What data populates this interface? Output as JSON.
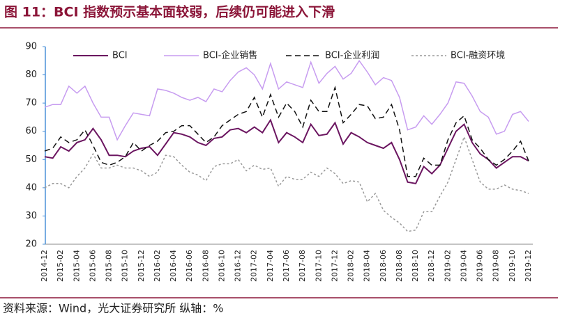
{
  "chart_data": {
    "type": "line",
    "title": "图 11：BCI 指数预示基本面较弱，后续仍可能进入下滑",
    "source": "资料来源：Wind，光大证券研究所 纵轴：%",
    "categories": [
      "2014-12",
      null,
      "2015-02",
      null,
      "2015-04",
      null,
      "2015-06",
      null,
      "2015-08",
      null,
      "2015-10",
      null,
      "2015-12",
      null,
      "2016-02",
      null,
      "2016-04",
      null,
      "2016-06",
      null,
      "2016-08",
      null,
      "2016-10",
      null,
      "2016-12",
      null,
      "2017-02",
      null,
      "2017-04",
      null,
      "2017-06",
      null,
      "2017-08",
      null,
      "2017-10",
      null,
      "2017-12",
      null,
      "2018-02",
      null,
      "2018-04",
      null,
      "2018-06",
      null,
      "2018-08",
      null,
      "2018-10",
      null,
      "2018-12",
      null,
      "2019-02",
      null,
      "2019-04",
      null,
      "2019-06",
      null,
      "2019-08",
      null,
      "2019-10",
      null,
      "2019-12"
    ],
    "series": [
      {
        "name": "BCI",
        "color": "#6b1560",
        "dash": "solid",
        "width": 2,
        "values": [
          51,
          50.5,
          54.5,
          53,
          56,
          57,
          61,
          57,
          51.5,
          51.5,
          51,
          53,
          54,
          54.5,
          51.5,
          55.5,
          59.5,
          59,
          58,
          56,
          55,
          57.5,
          58,
          60.5,
          61,
          59.5,
          61.5,
          59.5,
          64,
          56,
          59.5,
          58,
          56,
          62.5,
          58.5,
          59,
          63,
          55.5,
          59.5,
          58,
          56,
          55,
          54,
          56,
          50,
          42,
          41.5,
          47.5,
          45,
          48,
          54,
          60,
          62.5,
          56,
          52,
          50,
          47,
          49,
          51,
          51,
          49.5
        ]
      },
      {
        "name": "BCI-企业销售",
        "color": "#c79cf0",
        "dash": "solid",
        "width": 1.5,
        "values": [
          68.5,
          69.5,
          69.5,
          76,
          73.5,
          76,
          70,
          65,
          65,
          57,
          62,
          66.5,
          66,
          65.5,
          75,
          74.5,
          73.5,
          72,
          71,
          72,
          70.5,
          75,
          74,
          78,
          81,
          82.5,
          80,
          75,
          84,
          75,
          77.5,
          76.5,
          75.5,
          84.5,
          77,
          80.5,
          83,
          78.5,
          80.5,
          85,
          81,
          76.5,
          79,
          78,
          72,
          60.5,
          61.5,
          65.5,
          62.5,
          66,
          70,
          77.5,
          77,
          72.5,
          67,
          65,
          59,
          60,
          66,
          67,
          63.5
        ]
      },
      {
        "name": "BCI-企业利润",
        "color": "#111111",
        "dash": "8 5",
        "width": 1.5,
        "values": [
          53,
          54,
          58,
          56,
          57,
          60.5,
          55,
          49,
          48,
          49,
          51,
          56,
          53,
          55,
          56.5,
          59.5,
          60,
          62,
          62,
          59,
          56,
          58,
          62,
          64,
          66,
          67,
          72,
          65,
          73,
          65,
          70,
          67,
          61.5,
          71,
          67,
          67,
          75.5,
          63,
          66,
          69.5,
          69,
          64.5,
          65,
          69.5,
          60.5,
          44,
          44,
          50.5,
          48,
          48,
          57,
          63,
          65.5,
          57,
          54,
          50,
          48,
          50,
          53,
          56.5,
          49.5
        ]
      },
      {
        "name": "BCI-融资环境",
        "color": "#999999",
        "dash": "3 3",
        "width": 1.5,
        "values": [
          40,
          41.5,
          41.5,
          40,
          44,
          47,
          52,
          47,
          47,
          48,
          47,
          47,
          46,
          44,
          45.5,
          51.5,
          51,
          48,
          45.5,
          44.5,
          42.5,
          47.5,
          48.5,
          48.5,
          50,
          46,
          48,
          46.5,
          47,
          40.5,
          44,
          43,
          43,
          45.5,
          44,
          47,
          45,
          41.5,
          42.5,
          42,
          35,
          38,
          32,
          29.5,
          27.5,
          24.5,
          25,
          31.5,
          31.5,
          37,
          42,
          50,
          58,
          50,
          42,
          39.5,
          39.5,
          41,
          39.5,
          39,
          38
        ]
      }
    ],
    "ylim": [
      20,
      90
    ],
    "yticks": [
      20,
      30,
      40,
      50,
      60,
      70,
      80,
      90
    ],
    "legend": "top"
  }
}
